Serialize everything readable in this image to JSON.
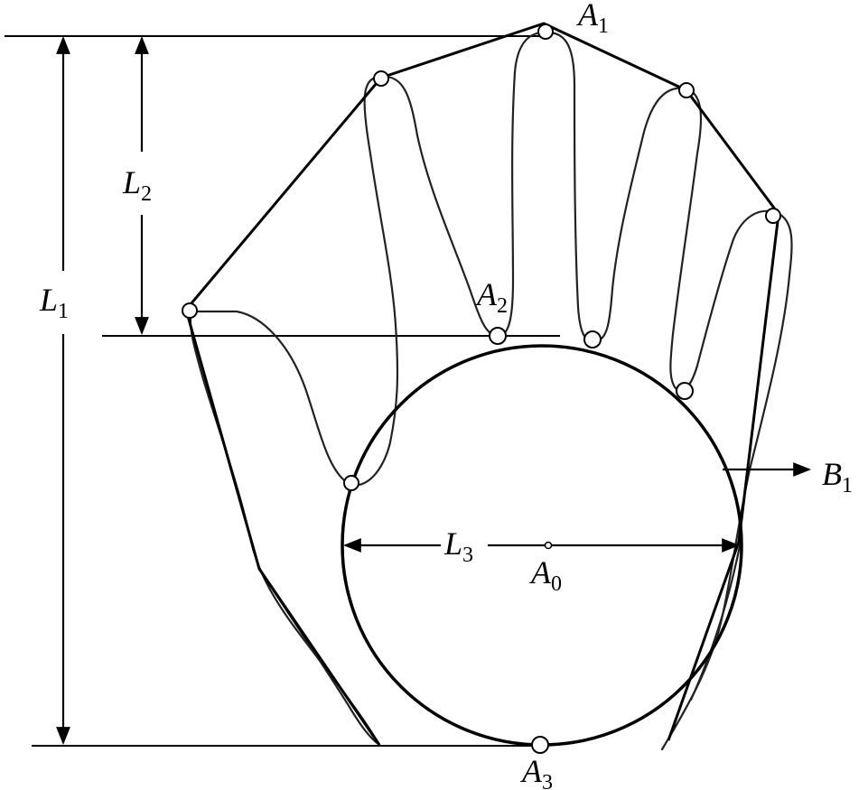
{
  "labels": {
    "A1": {
      "main": "A",
      "sub": "1"
    },
    "A2": {
      "main": "A",
      "sub": "2"
    },
    "A3": {
      "main": "A",
      "sub": "3"
    },
    "A0": {
      "main": "A",
      "sub": "0"
    },
    "B1": {
      "main": "B",
      "sub": "1"
    },
    "L1": {
      "main": "L",
      "sub": "1"
    },
    "L2": {
      "main": "L",
      "sub": "2"
    },
    "L3": {
      "main": "L",
      "sub": "3"
    }
  },
  "colors": {
    "stroke": "#000000",
    "background": "#ffffff",
    "point_fill": "#ffffff"
  }
}
